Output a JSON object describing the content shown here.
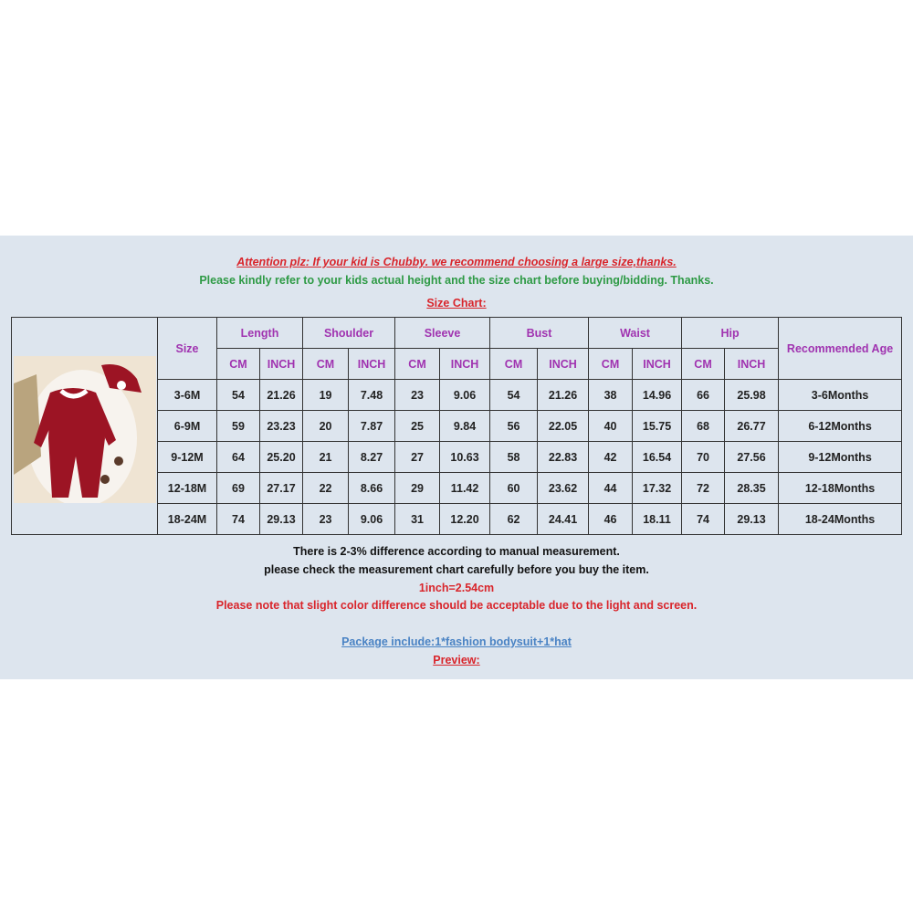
{
  "notice": {
    "attention": "Attention plz: If your kid is Chubby. we recommend choosing a large size,thanks.",
    "refer": "Please kindly refer to your kids actual height and the size chart before buying/bidding. Thanks.",
    "size_chart_title": "Size Chart:"
  },
  "table": {
    "size_header": "Size",
    "groups": [
      "Length",
      "Shoulder",
      "Sleeve",
      "Bust",
      "Waist",
      "Hip"
    ],
    "unit_cm": "CM",
    "unit_inch": "INCH",
    "age_header": "Recommended Age",
    "rows": [
      {
        "size": "3-6M",
        "values": [
          "54",
          "21.26",
          "19",
          "7.48",
          "23",
          "9.06",
          "54",
          "21.26",
          "38",
          "14.96",
          "66",
          "25.98"
        ],
        "age": "3-6Months"
      },
      {
        "size": "6-9M",
        "values": [
          "59",
          "23.23",
          "20",
          "7.87",
          "25",
          "9.84",
          "56",
          "22.05",
          "40",
          "15.75",
          "68",
          "26.77"
        ],
        "age": "6-12Months"
      },
      {
        "size": "9-12M",
        "values": [
          "64",
          "25.20",
          "21",
          "8.27",
          "27",
          "10.63",
          "58",
          "22.83",
          "42",
          "16.54",
          "70",
          "27.56"
        ],
        "age": "9-12Months"
      },
      {
        "size": "12-18M",
        "values": [
          "69",
          "27.17",
          "22",
          "8.66",
          "29",
          "11.42",
          "60",
          "23.62",
          "44",
          "17.32",
          "72",
          "28.35"
        ],
        "age": "12-18Months"
      },
      {
        "size": "18-24M",
        "values": [
          "74",
          "29.13",
          "23",
          "9.06",
          "31",
          "12.20",
          "62",
          "24.41",
          "46",
          "18.11",
          "74",
          "29.13"
        ],
        "age": "18-24Months"
      }
    ]
  },
  "footer": {
    "difference": "There is 2-3% difference according to manual measurement.",
    "check": "please check the measurement chart carefully before you buy the item.",
    "conversion": "1inch=2.54cm",
    "color_note": "Please note that slight color difference should be acceptable due to the light and screen.",
    "package": "Package include:1*fashion bodysuit+1*hat",
    "preview": "Preview:"
  },
  "colors": {
    "red": "#d9252b",
    "green": "#2e9a45",
    "purple": "#a033b0",
    "blue": "#4a83c4",
    "panel": "#dde5ee"
  }
}
